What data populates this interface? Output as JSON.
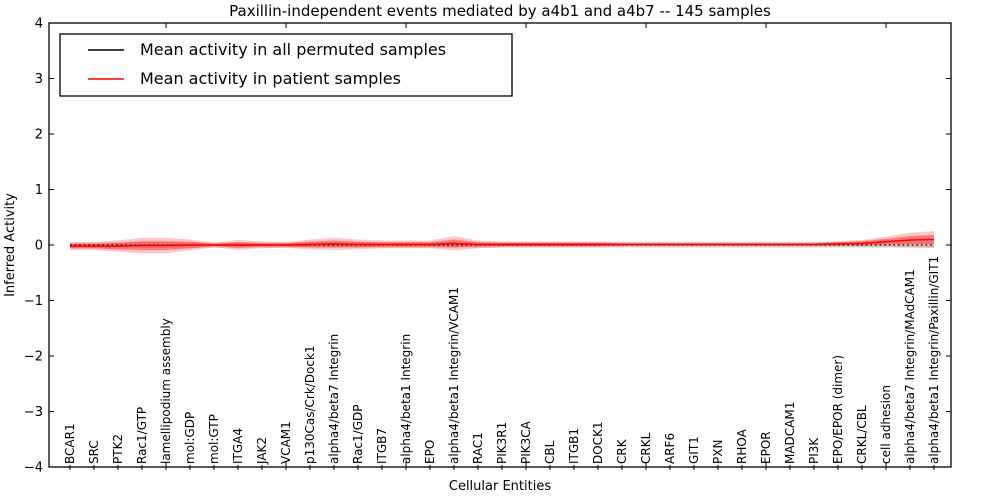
{
  "chart_data": {
    "type": "line",
    "title": "Paxillin-independent events mediated by a4b1 and a4b7 -- 145 samples",
    "xlabel": "Cellular Entities",
    "ylabel": "Inferred Activity",
    "ylim": [
      -4,
      4
    ],
    "ytick_values": [
      4,
      3,
      2,
      1,
      0,
      -1,
      -2,
      -3,
      -4
    ],
    "ytick_labels": [
      "4",
      "3",
      "2",
      "1",
      "0",
      "−1",
      "−2",
      "−3",
      "−4"
    ],
    "xtick_major_indices": [
      4,
      9,
      14,
      19,
      24,
      29,
      34
    ],
    "grid": false,
    "legend_position": "upper left",
    "categories": [
      "BCAR1",
      "SRC",
      "PTK2",
      "Rac1/GTP",
      "lamellipodium assembly",
      "mol:GDP",
      "mol:GTP",
      "ITGA4",
      "JAK2",
      "VCAM1",
      "p130Cas/Crk/Dock1",
      "alpha4/beta7 Integrin",
      "Rac1/GDP",
      "ITGB7",
      "alpha4/beta1 Integrin",
      "EPO",
      "alpha4/beta1 Integrin/VCAM1",
      "RAC1",
      "PIK3R1",
      "PIK3CA",
      "CBL",
      "ITGB1",
      "DOCK1",
      "CRK",
      "CRKL",
      "ARF6",
      "GIT1",
      "PXN",
      "RHOA",
      "EPOR",
      "MADCAM1",
      "PI3K",
      "EPO/EPOR (dimer)",
      "CRKL/CBL",
      "cell adhesion",
      "alpha4/beta7 Integrin/MAdCAM1",
      "alpha4/beta1 Integrin/Paxillin/GIT1"
    ],
    "series": [
      {
        "name": "Mean activity in all permuted samples",
        "color": "#000000",
        "line_style": "dotted",
        "values": [
          0,
          0,
          0,
          0,
          0,
          0,
          0,
          0,
          0,
          0,
          0,
          0,
          0,
          0,
          0,
          0,
          0,
          0,
          0,
          0,
          0,
          0,
          0,
          0,
          0,
          0,
          0,
          0,
          0,
          0,
          0,
          0,
          0,
          0,
          0,
          0,
          0
        ]
      },
      {
        "name": "Mean activity in patient samples",
        "color": "#ff0000",
        "line_style": "solid",
        "values": [
          -0.02,
          -0.02,
          -0.02,
          -0.01,
          -0.01,
          0,
          0,
          0,
          0,
          0,
          0.01,
          0.02,
          0.01,
          0.01,
          0.01,
          0.01,
          0.03,
          0.01,
          0.01,
          0.01,
          0.01,
          0.01,
          0.01,
          0.01,
          0.01,
          0.01,
          0.01,
          0.01,
          0.01,
          0.01,
          0.01,
          0.01,
          0.02,
          0.03,
          0.06,
          0.09,
          0.1
        ]
      }
    ],
    "bands": [
      {
        "name": "permuted-samples-spread",
        "color": "#000000",
        "opacity": 0.12,
        "center_series": 0,
        "half_width": 0.05
      },
      {
        "name": "patient-samples-spread-outer",
        "color": "#ff0000",
        "opacity": 0.22,
        "center_series": 1,
        "half_widths": [
          0.07,
          0.07,
          0.1,
          0.14,
          0.14,
          0.1,
          0.04,
          0.09,
          0.06,
          0.05,
          0.09,
          0.11,
          0.09,
          0.07,
          0.07,
          0.07,
          0.13,
          0.07,
          0.05,
          0.05,
          0.05,
          0.05,
          0.05,
          0.04,
          0.04,
          0.04,
          0.04,
          0.04,
          0.04,
          0.04,
          0.04,
          0.04,
          0.05,
          0.06,
          0.09,
          0.13,
          0.15
        ]
      },
      {
        "name": "patient-samples-spread-inner",
        "color": "#ff0000",
        "opacity": 0.38,
        "center_series": 1,
        "half_widths": [
          0.04,
          0.04,
          0.06,
          0.08,
          0.08,
          0.06,
          0.02,
          0.05,
          0.03,
          0.03,
          0.05,
          0.06,
          0.05,
          0.04,
          0.04,
          0.04,
          0.07,
          0.04,
          0.03,
          0.03,
          0.03,
          0.03,
          0.03,
          0.02,
          0.02,
          0.02,
          0.02,
          0.02,
          0.02,
          0.02,
          0.02,
          0.02,
          0.03,
          0.04,
          0.05,
          0.07,
          0.08
        ]
      }
    ]
  }
}
